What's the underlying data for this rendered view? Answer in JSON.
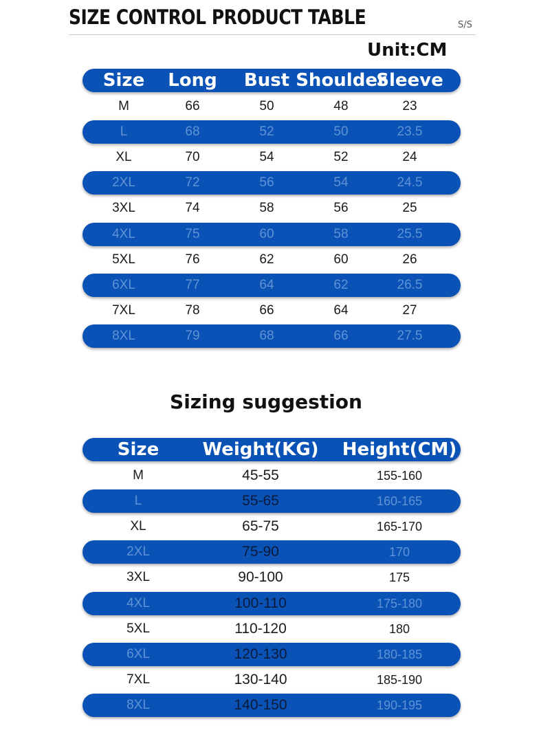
{
  "header": {
    "title": "SIZE CONTROL PRODUCT TABLE",
    "code": "S/S"
  },
  "size_table": {
    "unit": "Unit:CM",
    "columns": [
      "Size",
      "Long",
      "Bust",
      "Shoulder",
      "Sleeve"
    ],
    "rows": [
      [
        "M",
        "66",
        "50",
        "48",
        "23"
      ],
      [
        "L",
        "68",
        "52",
        "50",
        "23.5"
      ],
      [
        "XL",
        "70",
        "54",
        "52",
        "24"
      ],
      [
        "2XL",
        "72",
        "56",
        "54",
        "24.5"
      ],
      [
        "3XL",
        "74",
        "58",
        "56",
        "25"
      ],
      [
        "4XL",
        "75",
        "60",
        "58",
        "25.5"
      ],
      [
        "5XL",
        "76",
        "62",
        "60",
        "26"
      ],
      [
        "6XL",
        "77",
        "64",
        "62",
        "26.5"
      ],
      [
        "7XL",
        "78",
        "66",
        "64",
        "27"
      ],
      [
        "8XL",
        "79",
        "68",
        "66",
        "27.5"
      ]
    ]
  },
  "suggestion_table": {
    "title": "Sizing suggestion",
    "columns": [
      "Size",
      "Weight(KG)",
      "Height(CM)"
    ],
    "rows": [
      [
        "M",
        "45-55",
        "155-160"
      ],
      [
        "L",
        "55-65",
        "160-165"
      ],
      [
        "XL",
        "65-75",
        "165-170"
      ],
      [
        "2XL",
        "75-90",
        "170"
      ],
      [
        "3XL",
        "90-100",
        "175"
      ],
      [
        "4XL",
        "100-110",
        "175-180"
      ],
      [
        "5XL",
        "110-120",
        "180"
      ],
      [
        "6XL",
        "120-130",
        "180-185"
      ],
      [
        "7XL",
        "130-140",
        "185-190"
      ],
      [
        "8XL",
        "140-150",
        "190-195"
      ]
    ]
  },
  "colors": {
    "band_blue": "#0a52b5",
    "band_text": "#5f93d6",
    "header_text": "#ffffff"
  }
}
